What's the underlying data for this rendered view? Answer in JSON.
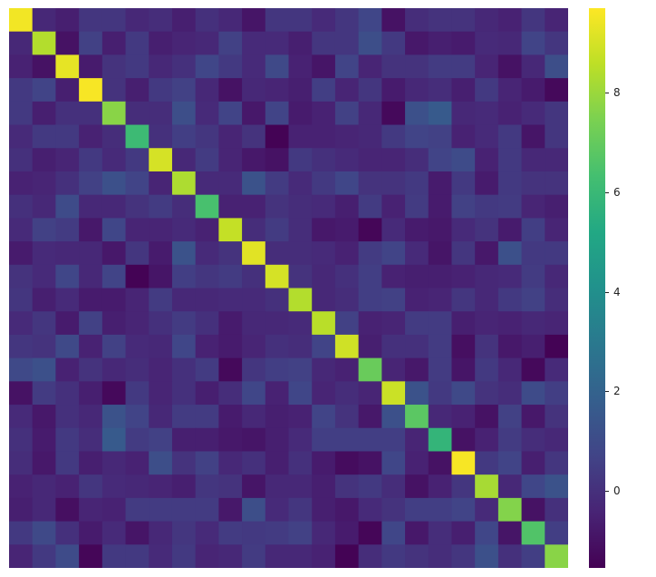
{
  "chart_data": {
    "type": "heatmap",
    "title": "",
    "xlabel": "",
    "ylabel": "",
    "colormap": "viridis",
    "vmin": -1.55,
    "vmax": 9.7,
    "colorbar": {
      "ticks": [
        8,
        6,
        4,
        2,
        0
      ],
      "tick_labels": [
        "8",
        "6",
        "4",
        "2",
        "0"
      ]
    },
    "values": [
      [
        9.5,
        -0.3,
        -0.6,
        0.2,
        0.2,
        -0.3,
        -0.1,
        -0.6,
        0.0,
        -0.3,
        -0.9,
        0.2,
        0.2,
        -0.2,
        0.2,
        0.8,
        -1.0,
        -0.1,
        0.1,
        0.1,
        -0.3,
        -0.5,
        0.2,
        -0.4
      ],
      [
        -0.3,
        8.4,
        -1.0,
        0.6,
        -0.6,
        0.3,
        -0.6,
        -0.4,
        -0.3,
        0.6,
        -0.2,
        -0.2,
        -0.6,
        0.2,
        0.2,
        1.1,
        0.3,
        -0.8,
        -0.6,
        -0.7,
        -0.2,
        -0.3,
        0.7,
        0.2
      ],
      [
        -0.5,
        -1.0,
        9.3,
        -0.7,
        0.1,
        0.3,
        -0.3,
        0.0,
        0.8,
        0.3,
        -0.2,
        0.9,
        -0.5,
        -0.9,
        0.7,
        -0.4,
        0.1,
        0.1,
        0.4,
        0.4,
        -0.4,
        -1.0,
        -0.3,
        1.1
      ],
      [
        0.3,
        0.7,
        -0.6,
        9.6,
        0.1,
        -0.6,
        0.3,
        0.6,
        -0.3,
        -1.0,
        -0.3,
        -0.4,
        -0.6,
        0.5,
        -0.4,
        0.2,
        -0.7,
        -0.3,
        -0.1,
        -0.6,
        0.3,
        -0.4,
        -0.7,
        -1.3
      ],
      [
        0.3,
        -0.6,
        0.0,
        0.0,
        7.7,
        -0.1,
        -0.1,
        1.1,
        -0.2,
        0.7,
        -0.8,
        0.7,
        -0.7,
        -0.5,
        0.6,
        -0.3,
        -1.3,
        1.2,
        1.6,
        -0.3,
        -0.2,
        -0.5,
        -0.2,
        0.2
      ],
      [
        -0.2,
        0.3,
        0.3,
        -0.5,
        -0.1,
        6.1,
        0.0,
        0.5,
        0.2,
        -0.4,
        0.1,
        -1.5,
        -0.5,
        -0.5,
        -0.4,
        -0.3,
        0.3,
        0.7,
        0.6,
        -0.5,
        -0.2,
        0.3,
        -0.9,
        0.2
      ],
      [
        0.0,
        -0.6,
        -0.4,
        0.3,
        -0.2,
        0.3,
        9.0,
        -0.3,
        0.4,
        -0.4,
        -0.8,
        -1.0,
        0.3,
        0.0,
        -0.2,
        -0.4,
        -0.4,
        -0.1,
        0.7,
        1.0,
        -0.5,
        0.3,
        -0.3,
        -0.3
      ],
      [
        -0.5,
        -0.4,
        0.0,
        0.6,
        1.2,
        0.7,
        -0.4,
        8.3,
        -0.2,
        -0.2,
        1.3,
        0.4,
        -0.2,
        0.3,
        0.8,
        0.1,
        0.1,
        0.3,
        -0.7,
        0.3,
        -0.7,
        0.3,
        0.1,
        0.1
      ],
      [
        0.0,
        -0.3,
        1.0,
        -0.3,
        -0.3,
        0.1,
        0.4,
        -0.1,
        6.4,
        -0.5,
        -0.5,
        0.1,
        -0.1,
        -0.2,
        -0.6,
        0.4,
        -0.5,
        0.4,
        -0.7,
        0.6,
        0.3,
        0.4,
        -0.4,
        -0.6
      ],
      [
        -0.2,
        0.6,
        0.4,
        -0.8,
        0.8,
        -0.4,
        -0.4,
        -0.2,
        -0.5,
        8.7,
        -0.1,
        0.4,
        -0.1,
        -0.8,
        -0.7,
        -1.4,
        -0.2,
        -0.7,
        -0.8,
        -0.2,
        0.1,
        -0.7,
        0.5,
        -0.4
      ],
      [
        -0.7,
        -0.2,
        -0.3,
        -0.3,
        -0.8,
        0.2,
        -0.7,
        1.3,
        -0.2,
        0.1,
        9.2,
        -0.1,
        -0.1,
        -0.2,
        -0.5,
        0.4,
        0.7,
        -0.2,
        -0.9,
        0.2,
        -0.8,
        1.2,
        0.3,
        0.3
      ],
      [
        0.1,
        -0.2,
        0.8,
        -0.3,
        0.7,
        -1.5,
        -0.9,
        0.5,
        0.2,
        0.4,
        0.0,
        9.0,
        0.1,
        -0.3,
        0.0,
        0.5,
        -0.5,
        -0.6,
        -0.6,
        -0.5,
        -0.3,
        -0.2,
        0.4,
        -0.3
      ],
      [
        0.2,
        -0.6,
        -0.2,
        -0.7,
        -0.7,
        -0.4,
        0.4,
        -0.3,
        -0.3,
        -0.2,
        -0.2,
        0.0,
        8.4,
        -0.3,
        -0.1,
        0.5,
        0.6,
        -0.5,
        -0.4,
        0.2,
        -0.3,
        0.3,
        0.6,
        -0.1
      ],
      [
        -0.2,
        0.2,
        -0.7,
        0.6,
        -0.6,
        -0.4,
        0.0,
        0.4,
        0.0,
        -0.7,
        -0.3,
        -0.3,
        -0.2,
        8.5,
        0.6,
        -0.5,
        -0.4,
        0.4,
        0.4,
        -0.6,
        -0.4,
        -0.5,
        -0.3,
        -0.4
      ],
      [
        0.2,
        0.1,
        0.9,
        -0.5,
        0.6,
        -0.2,
        -0.3,
        0.8,
        -0.5,
        -0.7,
        -0.4,
        0.0,
        -0.1,
        0.7,
        8.9,
        -0.6,
        0.0,
        0.0,
        0.4,
        -1.1,
        0.1,
        -0.8,
        -0.6,
        -1.5
      ],
      [
        0.9,
        1.2,
        -0.5,
        0.1,
        -0.3,
        -0.1,
        -0.4,
        0.0,
        0.4,
        -1.3,
        0.2,
        0.5,
        0.6,
        -0.3,
        -0.5,
        7.1,
        -0.4,
        -0.8,
        0.4,
        -0.9,
        0.3,
        -0.3,
        -1.3,
        -0.2
      ],
      [
        -1.0,
        0.4,
        0.0,
        -0.6,
        -1.3,
        0.3,
        -0.4,
        0.0,
        -0.6,
        -0.1,
        0.8,
        -0.5,
        0.8,
        -0.4,
        -0.1,
        -0.4,
        8.8,
        1.3,
        0.3,
        0.9,
        0.1,
        -0.1,
        1.0,
        0.5
      ],
      [
        -0.2,
        -0.8,
        0.0,
        -0.3,
        1.3,
        0.7,
        -0.3,
        0.4,
        0.4,
        -0.7,
        -0.3,
        -0.6,
        -0.5,
        0.7,
        0.1,
        -0.8,
        1.2,
        6.8,
        -0.3,
        -0.5,
        -1.0,
        0.6,
        -0.8,
        0.1
      ],
      [
        0.0,
        -0.7,
        0.3,
        -0.1,
        1.6,
        0.4,
        0.6,
        -0.6,
        -0.6,
        -0.8,
        -0.9,
        -0.6,
        -0.2,
        0.5,
        0.5,
        0.5,
        0.5,
        -0.4,
        5.8,
        -1.0,
        -0.5,
        0.4,
        -0.1,
        -0.3
      ],
      [
        -0.1,
        -0.8,
        0.3,
        -0.6,
        -0.3,
        -0.5,
        1.1,
        0.1,
        0.6,
        -0.3,
        0.0,
        -0.6,
        0.0,
        -0.7,
        -1.2,
        -1.0,
        0.8,
        -0.5,
        -1.0,
        9.6,
        0.3,
        0.7,
        -0.6,
        0.2
      ],
      [
        -0.5,
        -0.3,
        -0.5,
        0.2,
        -0.2,
        -0.3,
        -0.4,
        -0.6,
        0.2,
        0.1,
        -0.9,
        -0.3,
        -0.3,
        -0.6,
        0.1,
        0.3,
        -0.1,
        -1.0,
        -0.5,
        0.2,
        8.2,
        -0.3,
        0.8,
        1.3
      ],
      [
        -0.6,
        -0.3,
        -1.1,
        -0.4,
        -0.5,
        0.4,
        0.4,
        0.4,
        0.4,
        -0.8,
        1.1,
        -0.2,
        0.2,
        -0.6,
        -0.8,
        -0.2,
        0.1,
        0.5,
        0.5,
        0.7,
        -0.2,
        7.6,
        -1.0,
        0.0
      ],
      [
        0.3,
        0.9,
        0.0,
        -0.7,
        -0.2,
        -0.9,
        -0.3,
        0.2,
        -0.2,
        0.4,
        0.3,
        0.4,
        0.6,
        -0.3,
        -0.7,
        -1.4,
        0.8,
        -0.8,
        -0.1,
        -0.6,
        0.8,
        -0.9,
        6.6,
        0.5
      ],
      [
        -0.4,
        0.3,
        1.0,
        -1.4,
        0.3,
        0.3,
        -0.2,
        0.3,
        -0.4,
        -0.3,
        0.4,
        -0.3,
        -0.3,
        -0.5,
        -1.5,
        -0.1,
        0.3,
        0.1,
        -0.1,
        0.2,
        1.2,
        0.0,
        0.5,
        7.7
      ]
    ],
    "grid": false,
    "legend": "colorbar-right"
  }
}
